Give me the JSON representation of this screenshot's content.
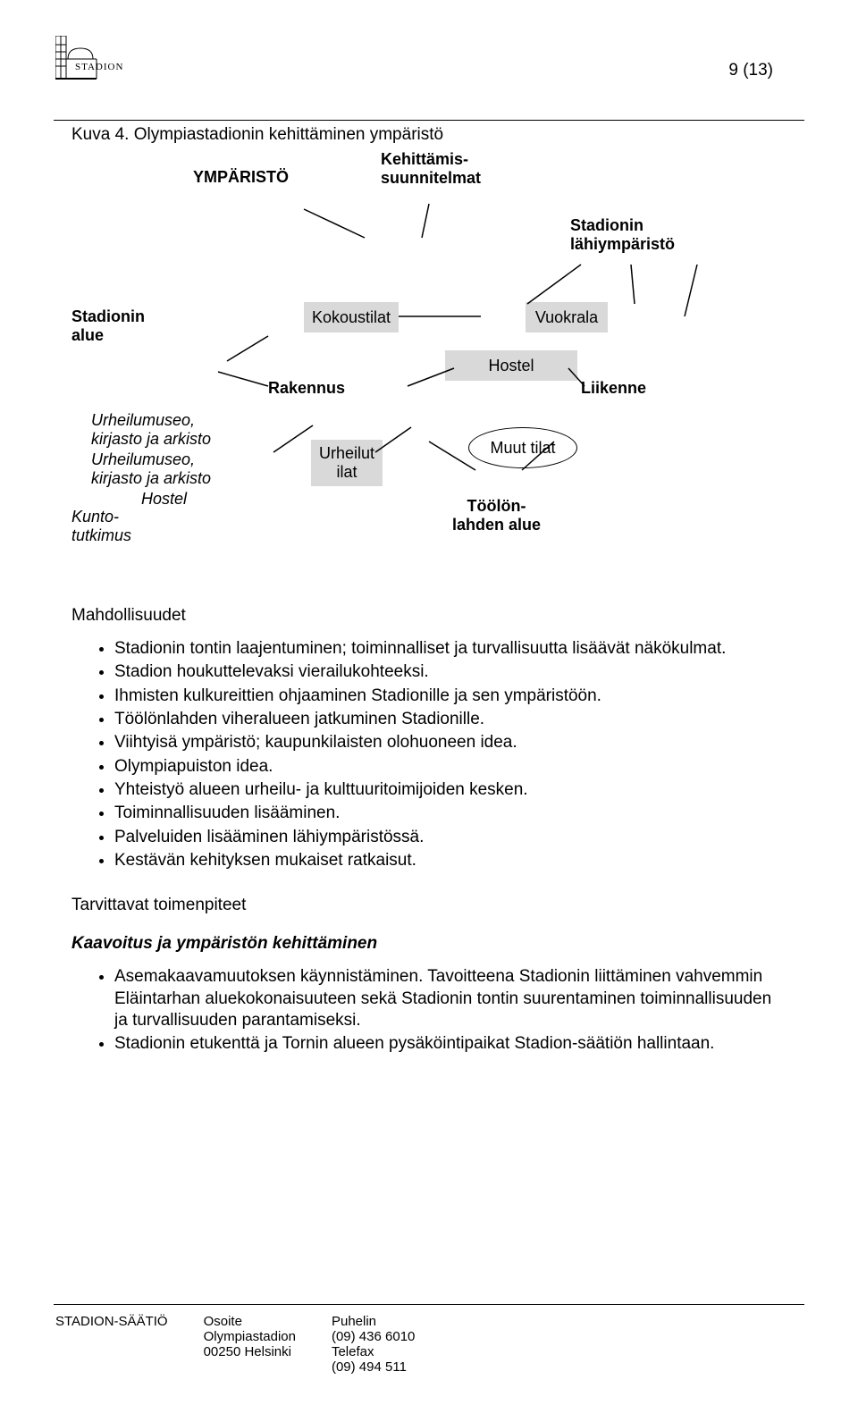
{
  "page_number": "9 (13)",
  "logo_text": "STADION",
  "caption": "Kuva 4. Olympiastadionin kehittäminen ympäristö",
  "diagram": {
    "headers": {
      "ymparisto": "YMPÄRISTÖ",
      "kehittamis": "Kehittämis-\nsuunnitelmat",
      "lahiymp": "Stadionin\nlähiympäristö"
    },
    "labels": {
      "stadionin_alue": "Stadionin\nalue",
      "rakennus": "Rakennus",
      "liikenne": "Liikenne",
      "urheilumuseo1": "Urheilumuseo,\nkirjasto ja arkisto",
      "urheilumuseo2": "Urheilumuseo,\nkirjasto ja arkisto",
      "hostel_lower": "Hostel",
      "kunto": "Kunto-\ntutkimus",
      "toolon": "Töölön-\nlahden alue"
    },
    "boxes": {
      "kokoustilat": "Kokoustilat",
      "vuokrala": "Vuokrala",
      "hostel": "Hostel",
      "urheilutilat": "Urheilut\nilat"
    },
    "ellipse": {
      "muut_tilat": "Muut tilat"
    },
    "box_color": "#d9d9d9",
    "lines": [
      [
        260,
        66,
        328,
        98
      ],
      [
        400,
        60,
        392,
        98
      ],
      [
        510,
        172,
        570,
        128
      ],
      [
        630,
        172,
        626,
        128
      ],
      [
        686,
        186,
        700,
        128
      ],
      [
        366,
        186,
        458,
        186
      ],
      [
        174,
        236,
        220,
        208
      ],
      [
        164,
        248,
        220,
        264
      ],
      [
        376,
        264,
        428,
        244
      ],
      [
        556,
        244,
        574,
        264
      ],
      [
        226,
        338,
        270,
        308
      ],
      [
        340,
        338,
        380,
        310
      ],
      [
        400,
        326,
        452,
        358
      ],
      [
        540,
        326,
        504,
        358
      ]
    ]
  },
  "sections": {
    "mahdollisuudet_h": "Mahdollisuudet",
    "mahdollisuudet": [
      "Stadionin tontin laajentuminen; toiminnalliset ja turvallisuutta lisäävät näkökulmat.",
      "Stadion houkuttelevaksi vierailukohteeksi.",
      "Ihmisten kulkureittien ohjaaminen Stadionille ja sen ympäristöön.",
      "Töölönlahden viheralueen jatkuminen Stadionille.",
      "Viihtyisä ympäristö; kaupunkilaisten olohuoneen idea.",
      "Olympiapuiston idea.",
      "Yhteistyö alueen urheilu- ja kulttuuritoimijoiden kesken.",
      "Toiminnallisuuden lisääminen.",
      "Palveluiden lisääminen lähiympäristössä.",
      "Kestävän kehityksen mukaiset ratkaisut."
    ],
    "tarvittavat_h": "Tarvittavat toimenpiteet",
    "kaavoitus_h": "Kaavoitus ja ympäristön kehittäminen",
    "kaavoitus": [
      "Asemakaavamuutoksen käynnistäminen. Tavoitteena Stadionin liittäminen vahvemmin Eläintarhan aluekokonaisuuteen sekä Stadionin tontin suurentaminen toiminnallisuuden ja turvallisuuden parantamiseksi.",
      "Stadionin etukenttä ja Tornin alueen pysäköintipaikat Stadion-säätiön hallintaan."
    ]
  },
  "footer": {
    "org": "STADION-SÄÄTIÖ",
    "addr_h": "Osoite",
    "addr1": "Olympiastadion",
    "addr2": "00250 Helsinki",
    "tel_h": "Puhelin",
    "tel1": "(09) 436 6010",
    "fax_h": "Telefax",
    "fax1": "(09) 494 511"
  }
}
